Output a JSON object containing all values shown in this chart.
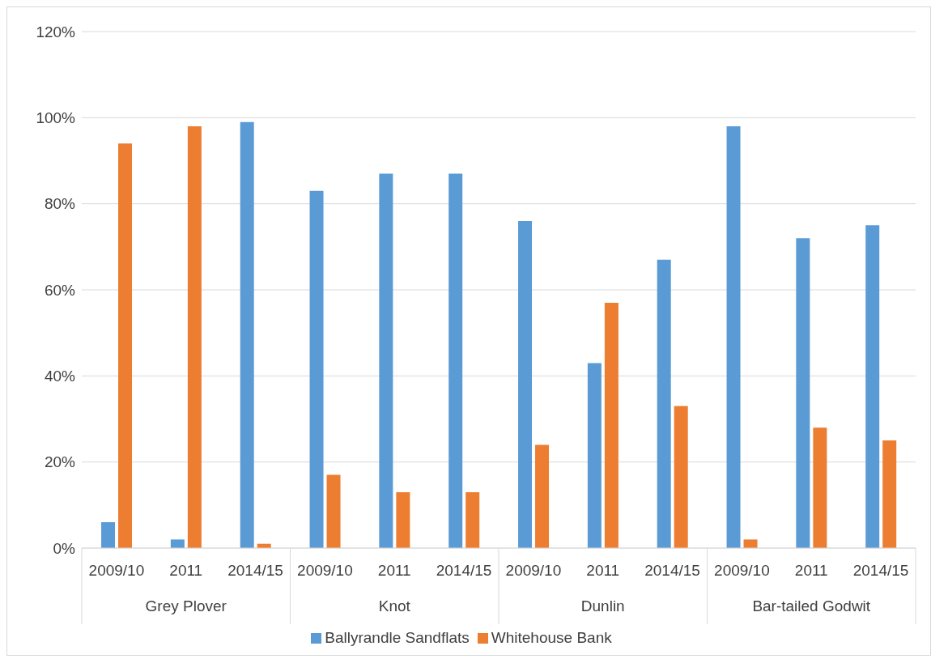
{
  "chart_data": {
    "type": "bar",
    "categories": [
      "2009/10",
      "2011",
      "2014/15",
      "2009/10",
      "2011",
      "2014/15",
      "2009/10",
      "2011",
      "2014/15",
      "2009/10",
      "2011",
      "2014/15"
    ],
    "annotations": [
      "Grey Plover",
      "Knot",
      "Dunlin",
      "Bar-tailed Godwit"
    ],
    "series": [
      {
        "name": "Ballyrandle Sandflats",
        "color": "#5b9bd5",
        "values": [
          6,
          2,
          99,
          83,
          87,
          87,
          76,
          43,
          67,
          98,
          72,
          75
        ]
      },
      {
        "name": "Whitehouse Bank",
        "color": "#ed7d31",
        "values": [
          94,
          98,
          1,
          17,
          13,
          13,
          24,
          57,
          33,
          2,
          28,
          25
        ]
      }
    ],
    "ylim": [
      0,
      120
    ],
    "yticks": [
      {
        "value": 0,
        "label": "0%"
      },
      {
        "value": 20,
        "label": "20%"
      },
      {
        "value": 40,
        "label": "40%"
      },
      {
        "value": 60,
        "label": "60%"
      },
      {
        "value": 80,
        "label": "80%"
      },
      {
        "value": 100,
        "label": "100%"
      },
      {
        "value": 120,
        "label": "120%"
      }
    ],
    "grid": "y",
    "legend": "bottom"
  }
}
